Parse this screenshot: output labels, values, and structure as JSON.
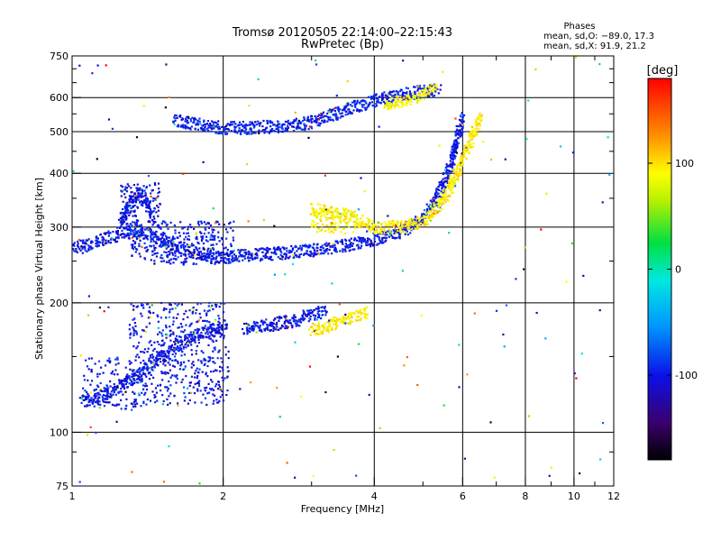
{
  "chart_data": {
    "type": "scatter",
    "title": "Tromsø 20120505 22:14:00–22:15:43",
    "subtitle": "RwPretec (Bp)",
    "xlabel": "Frequency [MHz]",
    "ylabel": "Stationary phase Virtual Height [km]",
    "x_scale": "log",
    "y_scale": "log",
    "xlim": [
      1,
      12
    ],
    "ylim": [
      75,
      750
    ],
    "x_ticks": [
      1,
      2,
      4,
      6,
      8,
      10,
      12
    ],
    "y_ticks": [
      75,
      100,
      200,
      300,
      400,
      500,
      600,
      750
    ],
    "grid": true,
    "legend": {
      "heading": "Phases",
      "lines": [
        "mean, sd,O: −89.0, 17.3",
        "mean, sd,X:  91.9, 21.2"
      ],
      "position": "top-right"
    },
    "colorbar": {
      "label": "[deg]",
      "range": [
        -180,
        180
      ],
      "ticks": [
        100,
        0,
        -100
      ],
      "colormap": "rainbow"
    },
    "series": [
      {
        "name": "O",
        "mean": -89.0,
        "sd": 17.3
      },
      {
        "name": "X",
        "mean": 91.9,
        "sd": 21.2
      }
    ],
    "traces": [
      {
        "x": [
          1.0,
          1.05,
          1.1,
          1.25,
          1.35,
          1.5,
          1.7,
          1.9,
          2.0,
          2.2,
          2.5,
          3.0,
          3.5,
          4.0,
          4.5,
          5.0,
          5.3,
          5.6,
          5.8,
          6.0
        ],
        "y": [
          270,
          270,
          275,
          290,
          295,
          280,
          265,
          258,
          255,
          258,
          260,
          265,
          272,
          280,
          292,
          315,
          345,
          400,
          460,
          540
        ],
        "phase": -100
      },
      {
        "x": [
          3.0,
          3.5,
          4.0,
          4.5,
          5.0,
          5.3,
          5.6,
          5.9,
          6.2,
          6.5
        ],
        "y": [
          330,
          320,
          300,
          300,
          310,
          330,
          360,
          410,
          470,
          540
        ],
        "phase": 95
      },
      {
        "x": [
          1.6,
          1.8,
          2.0,
          2.2,
          2.6,
          3.0,
          3.5,
          4.0,
          4.3,
          4.6,
          5.0,
          5.4
        ],
        "y": [
          530,
          520,
          510,
          510,
          515,
          525,
          560,
          590,
          600,
          610,
          620,
          625
        ],
        "phase": -95
      },
      {
        "x": [
          4.2,
          4.6,
          5.0,
          5.3
        ],
        "y": [
          580,
          590,
          610,
          630
        ],
        "phase": 90
      },
      {
        "x": [
          1.05,
          1.1,
          1.2,
          1.35,
          1.5,
          1.65,
          1.8,
          1.95,
          2.0
        ],
        "y": [
          118,
          120,
          125,
          135,
          150,
          160,
          170,
          175,
          170
        ],
        "phase": -100
      },
      {
        "x": [
          2.2,
          2.5,
          2.8,
          3.0,
          3.2
        ],
        "y": [
          175,
          178,
          182,
          188,
          192
        ],
        "phase": -100
      },
      {
        "x": [
          3.0,
          3.3,
          3.6,
          3.9
        ],
        "y": [
          172,
          178,
          185,
          190
        ],
        "phase": 95
      },
      {
        "x": [
          1.25,
          1.3,
          1.35,
          1.4,
          1.45
        ],
        "y": [
          310,
          335,
          360,
          345,
          320
        ],
        "phase": -100
      }
    ]
  }
}
